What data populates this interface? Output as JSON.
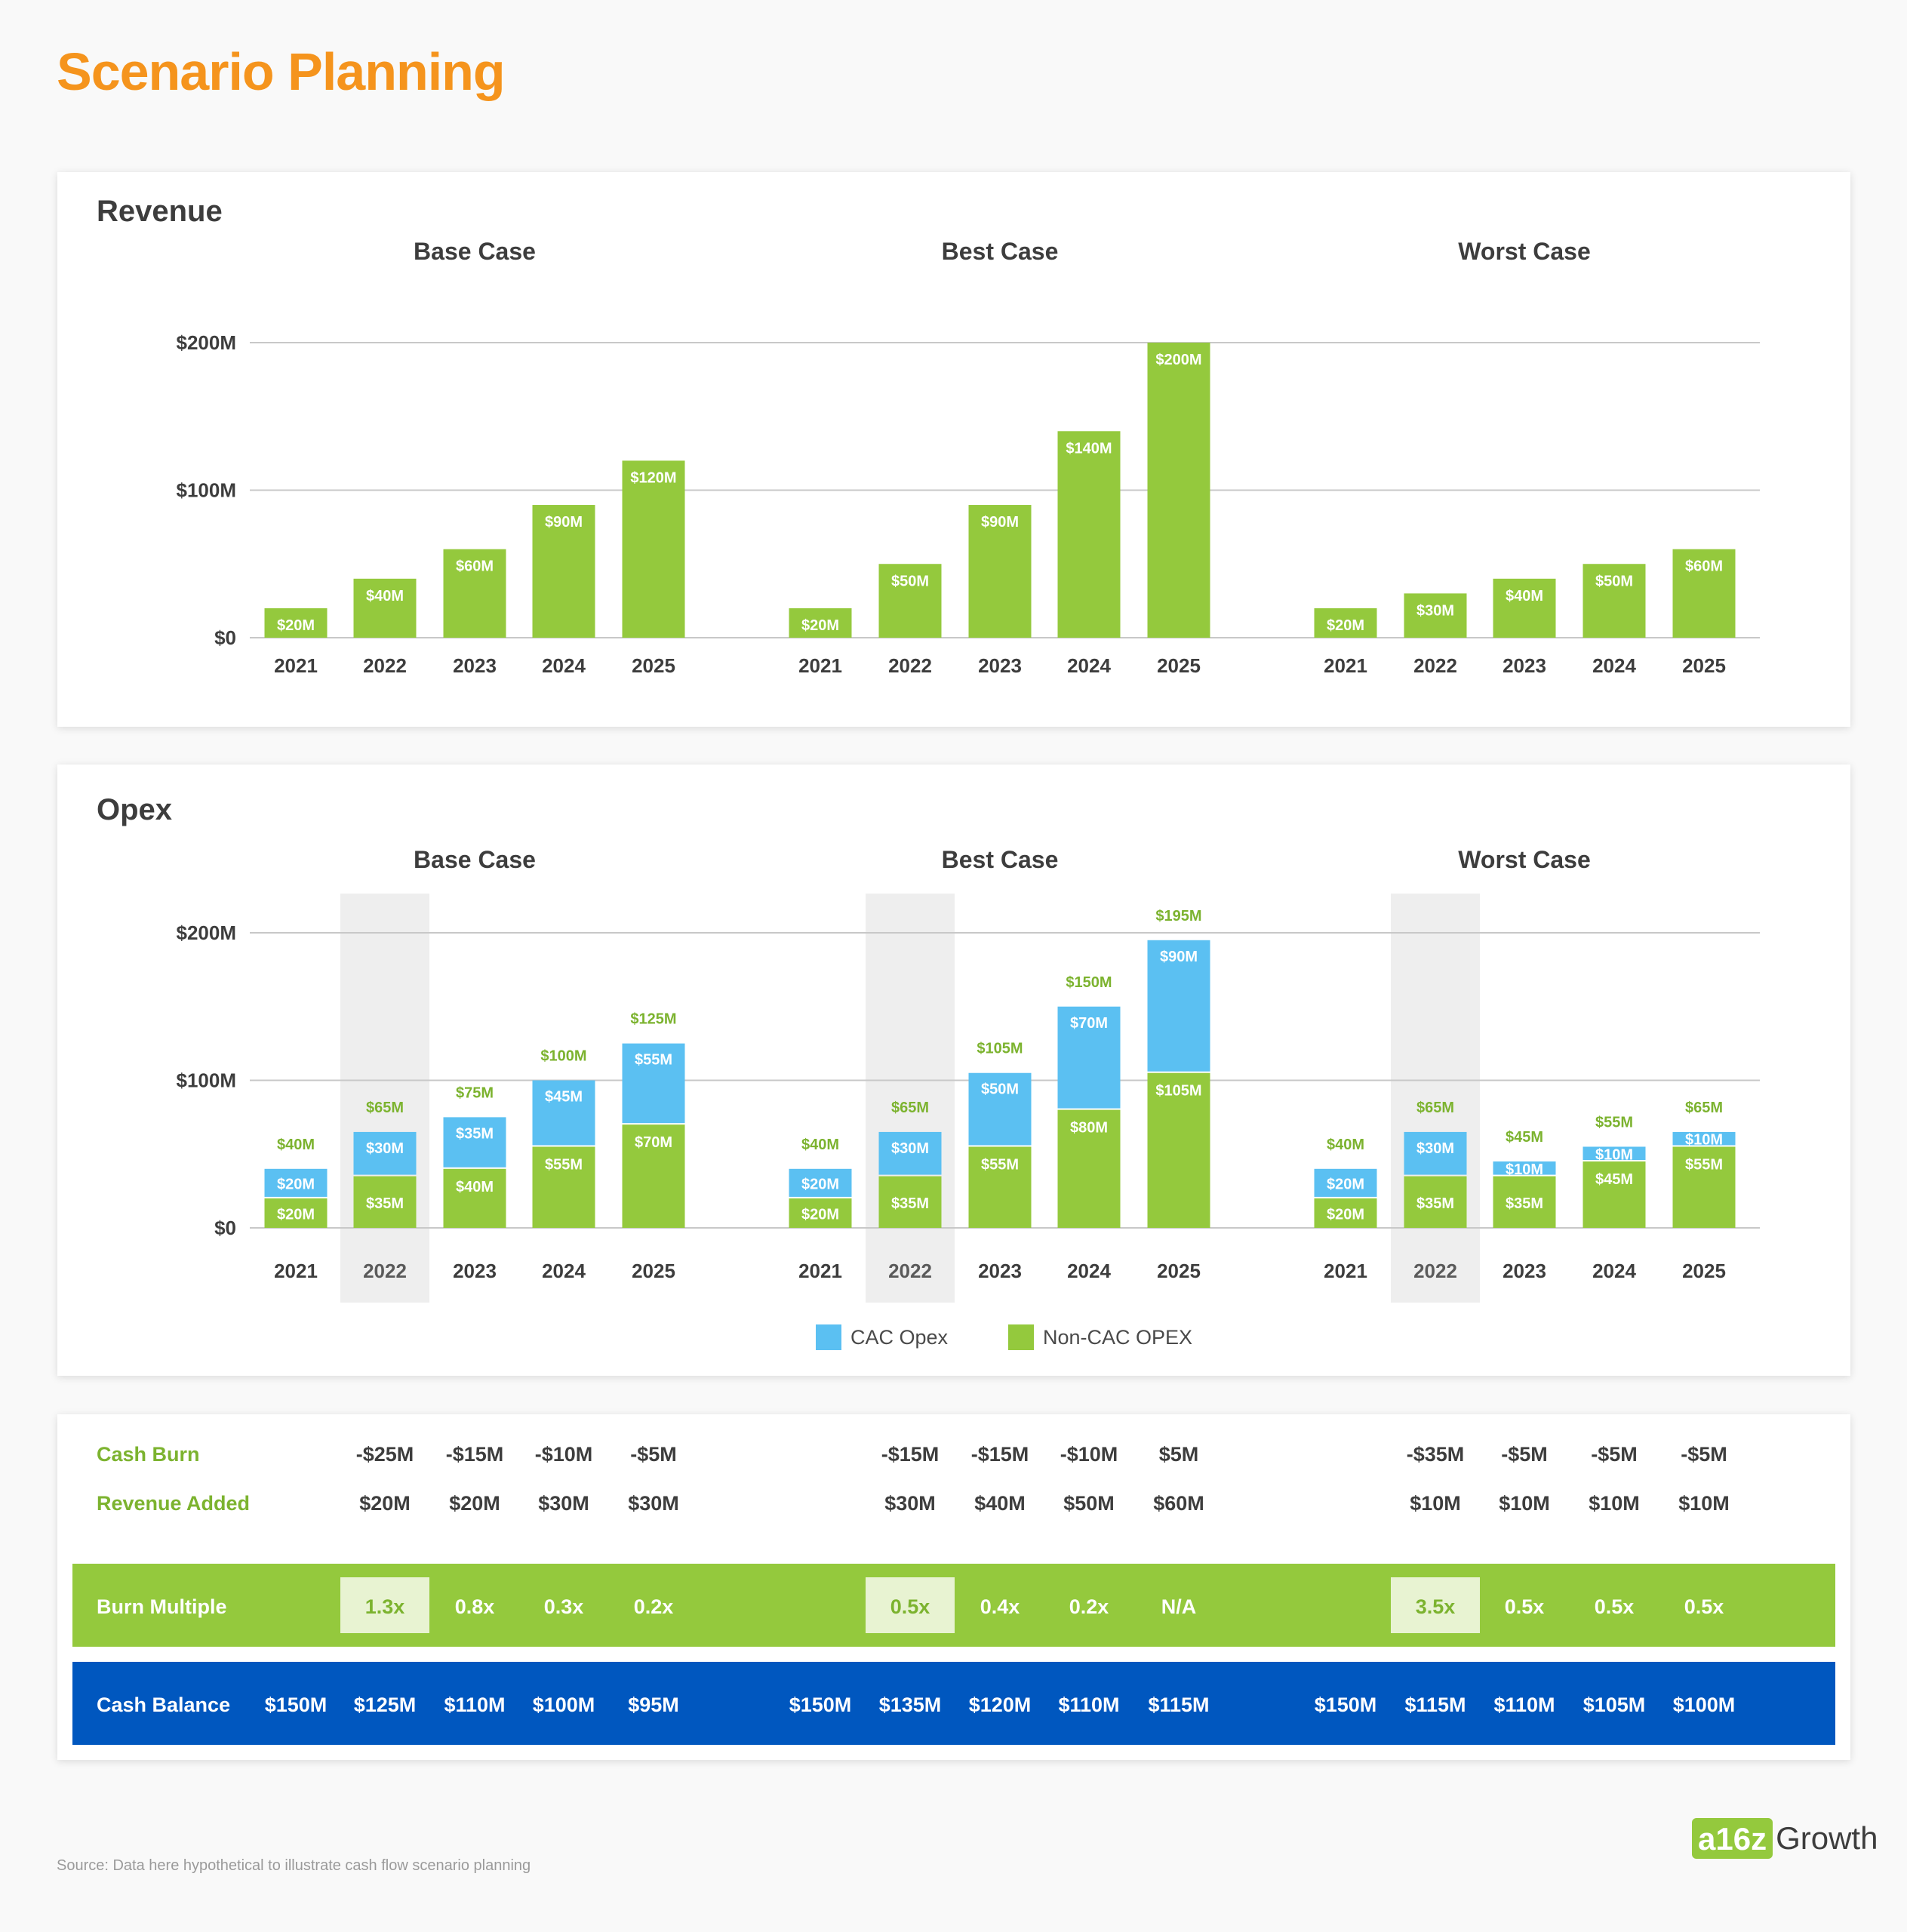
{
  "page_title": "Scenario Planning",
  "colors": {
    "title": "#f5941d",
    "green": "#94c93d",
    "blue": "#5bc0f2",
    "navy": "#0057bf",
    "highlight": "#eeeeee"
  },
  "chart_data": [
    {
      "type": "bar",
      "title": "Revenue",
      "ylim": [
        0,
        200
      ],
      "y_ticks": [
        "$0",
        "$100M",
        "$200M"
      ],
      "panels": [
        {
          "name": "Base Case",
          "categories": [
            "2021",
            "2022",
            "2023",
            "2024",
            "2025"
          ],
          "values": [
            20,
            40,
            60,
            90,
            120
          ],
          "labels": [
            "$20M",
            "$40M",
            "$60M",
            "$90M",
            "$120M"
          ]
        },
        {
          "name": "Best Case",
          "categories": [
            "2021",
            "2022",
            "2023",
            "2024",
            "2025"
          ],
          "values": [
            20,
            50,
            90,
            140,
            200
          ],
          "labels": [
            "$20M",
            "$50M",
            "$90M",
            "$140M",
            "$200M"
          ]
        },
        {
          "name": "Worst Case",
          "categories": [
            "2021",
            "2022",
            "2023",
            "2024",
            "2025"
          ],
          "values": [
            20,
            30,
            40,
            50,
            60
          ],
          "labels": [
            "$20M",
            "$30M",
            "$40M",
            "$50M",
            "$60M"
          ]
        }
      ]
    },
    {
      "type": "bar",
      "title": "Opex",
      "stacked": true,
      "ylim": [
        0,
        200
      ],
      "y_ticks": [
        "$0",
        "$100M",
        "$200M"
      ],
      "highlight_category": "2022",
      "legend": [
        {
          "name": "CAC Opex",
          "color": "#5bc0f2"
        },
        {
          "name": "Non-CAC OPEX",
          "color": "#94c93d"
        }
      ],
      "panels": [
        {
          "name": "Base Case",
          "categories": [
            "2021",
            "2022",
            "2023",
            "2024",
            "2025"
          ],
          "cac": [
            20,
            30,
            35,
            45,
            55
          ],
          "noncac": [
            20,
            35,
            40,
            55,
            70
          ],
          "cac_labels": [
            "$20M",
            "$30M",
            "$35M",
            "$45M",
            "$55M"
          ],
          "noncac_labels": [
            "$20M",
            "$35M",
            "$40M",
            "$55M",
            "$70M"
          ],
          "total_labels": [
            "$40M",
            "$65M",
            "$75M",
            "$100M",
            "$125M"
          ]
        },
        {
          "name": "Best Case",
          "categories": [
            "2021",
            "2022",
            "2023",
            "2024",
            "2025"
          ],
          "cac": [
            20,
            30,
            50,
            70,
            90
          ],
          "noncac": [
            20,
            35,
            55,
            80,
            105
          ],
          "cac_labels": [
            "$20M",
            "$30M",
            "$50M",
            "$70M",
            "$90M"
          ],
          "noncac_labels": [
            "$20M",
            "$35M",
            "$55M",
            "$80M",
            "$105M"
          ],
          "total_labels": [
            "$40M",
            "$65M",
            "$105M",
            "$150M",
            "$195M"
          ]
        },
        {
          "name": "Worst Case",
          "categories": [
            "2021",
            "2022",
            "2023",
            "2024",
            "2025"
          ],
          "cac": [
            20,
            30,
            10,
            10,
            10
          ],
          "noncac": [
            20,
            35,
            35,
            45,
            55
          ],
          "cac_labels": [
            "$20M",
            "$30M",
            "$10M",
            "$10M",
            "$10M"
          ],
          "noncac_labels": [
            "$20M",
            "$35M",
            "$35M",
            "$45M",
            "$55M"
          ],
          "total_labels": [
            "$40M",
            "$65M",
            "$45M",
            "$55M",
            "$65M"
          ]
        }
      ]
    }
  ],
  "table": {
    "cash_burn": {
      "label": "Cash Burn",
      "values": [
        [
          "",
          "-$25M",
          "-$15M",
          "-$10M",
          "-$5M"
        ],
        [
          "",
          "-$15M",
          "-$15M",
          "-$10M",
          "$5M"
        ],
        [
          "",
          "-$35M",
          "-$5M",
          "-$5M",
          "-$5M"
        ]
      ]
    },
    "revenue_added": {
      "label": "Revenue Added",
      "values": [
        [
          "",
          "$20M",
          "$20M",
          "$30M",
          "$30M"
        ],
        [
          "",
          "$30M",
          "$40M",
          "$50M",
          "$60M"
        ],
        [
          "",
          "$10M",
          "$10M",
          "$10M",
          "$10M"
        ]
      ]
    },
    "burn_multiple": {
      "label": "Burn Multiple",
      "values": [
        [
          "",
          "1.3x",
          "0.8x",
          "0.3x",
          "0.2x"
        ],
        [
          "",
          "0.5x",
          "0.4x",
          "0.2x",
          "N/A"
        ],
        [
          "",
          "3.5x",
          "0.5x",
          "0.5x",
          "0.5x"
        ]
      ]
    },
    "cash_balance": {
      "label": "Cash Balance",
      "values": [
        [
          "$150M",
          "$125M",
          "$110M",
          "$100M",
          "$95M"
        ],
        [
          "$150M",
          "$135M",
          "$120M",
          "$110M",
          "$115M"
        ],
        [
          "$150M",
          "$115M",
          "$110M",
          "$105M",
          "$100M"
        ]
      ]
    }
  },
  "footer": {
    "source": "Source: Data here hypothetical to illustrate cash flow scenario planning",
    "logo_mark": "a16z",
    "logo_text": "Growth"
  }
}
